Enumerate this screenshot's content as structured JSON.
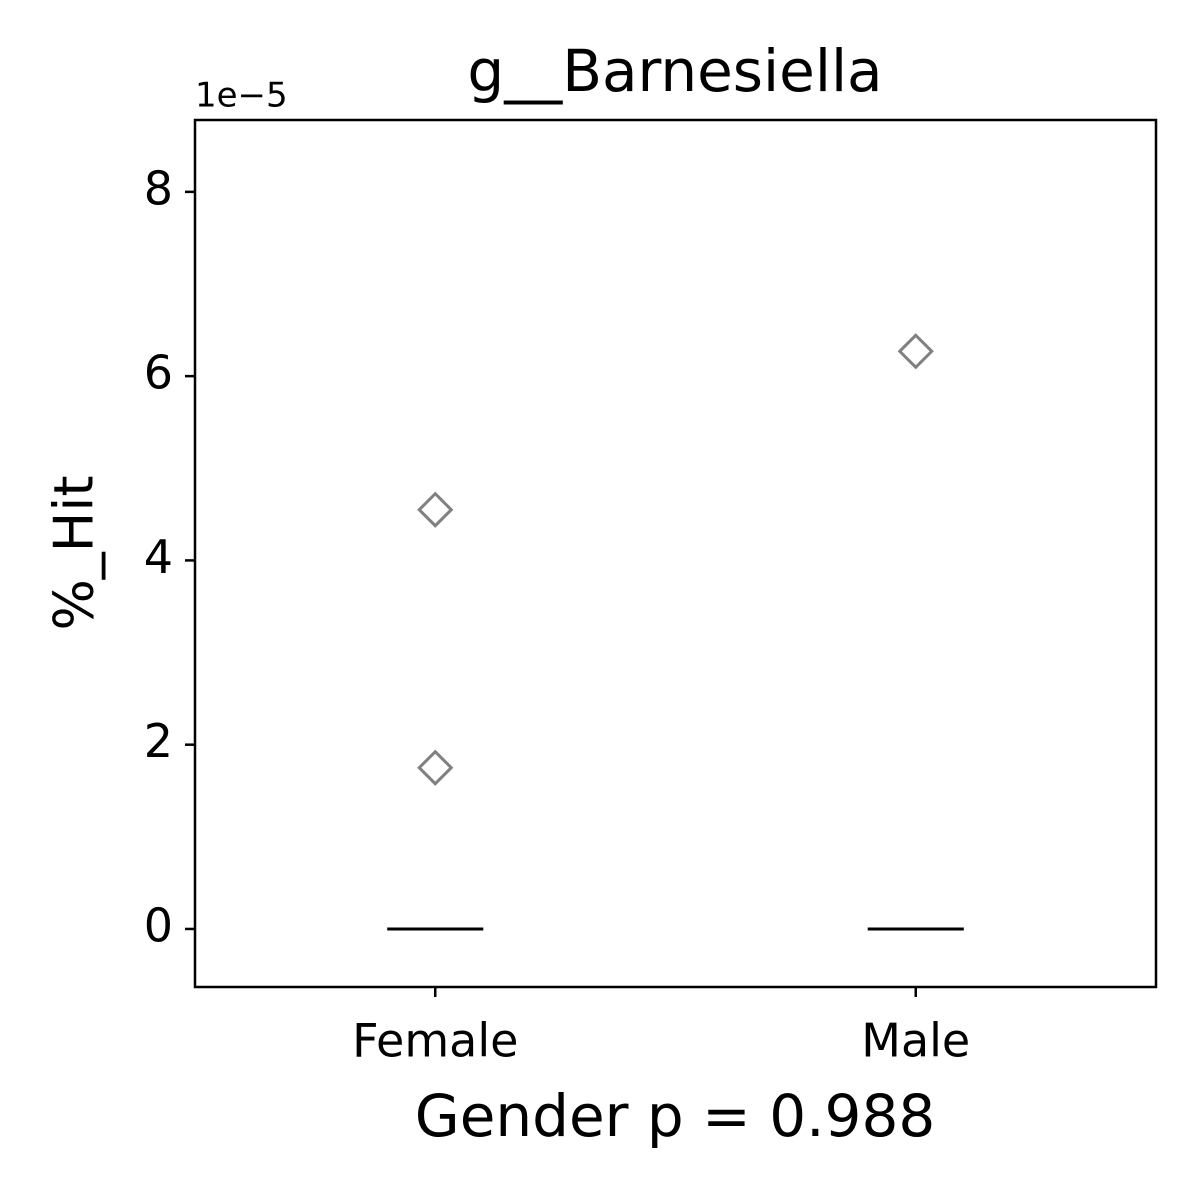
{
  "chart_data": {
    "type": "box",
    "title": "g__Barnesiella",
    "y_label": "%_Hit",
    "x_label": "Gender p = 0.988",
    "y_offset_label": "1e−5",
    "categories": [
      "Female",
      "Male"
    ],
    "boxes": [
      {
        "q1": 0,
        "median": 0,
        "q3": 0,
        "whisker_low": 0,
        "whisker_high": 0,
        "outliers": [
          1.75,
          4.55
        ]
      },
      {
        "q1": 0,
        "median": 0,
        "q3": 0,
        "whisker_low": 0,
        "whisker_high": 0,
        "outliers": [
          6.27
        ]
      }
    ],
    "color": "#000000",
    "outlier_color": "#808080",
    "ylim": [
      -0.63,
      8.78
    ],
    "yticks": [
      0,
      2,
      4,
      6,
      8
    ],
    "grid": false
  }
}
